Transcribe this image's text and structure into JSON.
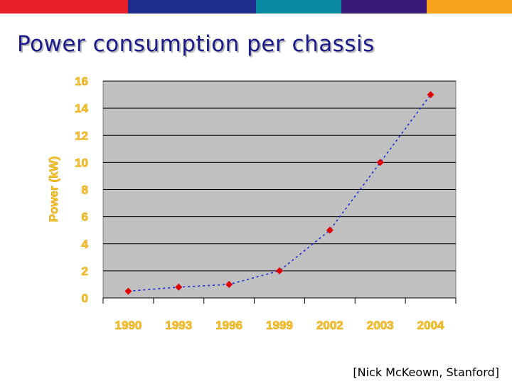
{
  "slide": {
    "title": "Power consumption per chassis",
    "citation": "[Nick McKeown, Stanford]",
    "top_bar_colors": [
      "#e8202a",
      "#1e2d8c",
      "#0a8aa0",
      "#3a1a78",
      "#f7a21b"
    ]
  },
  "colors": {
    "plot_background": "#c0c0c0",
    "gridline": "#000000",
    "series_line": "#1a2bd8",
    "marker": "#e00000",
    "tick_text": "#f5c63a"
  },
  "chart_data": {
    "type": "line",
    "title": "Power consumption per chassis",
    "xlabel": "",
    "ylabel": "Power (kW)",
    "categories": [
      "1990",
      "1993",
      "1996",
      "1999",
      "2002",
      "2003",
      "2004"
    ],
    "series": [
      {
        "name": "Power (kW)",
        "values": [
          0.5,
          0.8,
          1,
          2,
          5,
          10,
          15
        ]
      }
    ],
    "ylim": [
      0,
      16
    ],
    "yticks": [
      0,
      2,
      4,
      6,
      8,
      10,
      12,
      14,
      16
    ],
    "grid": true,
    "legend": "none",
    "line_style": "dotted"
  }
}
